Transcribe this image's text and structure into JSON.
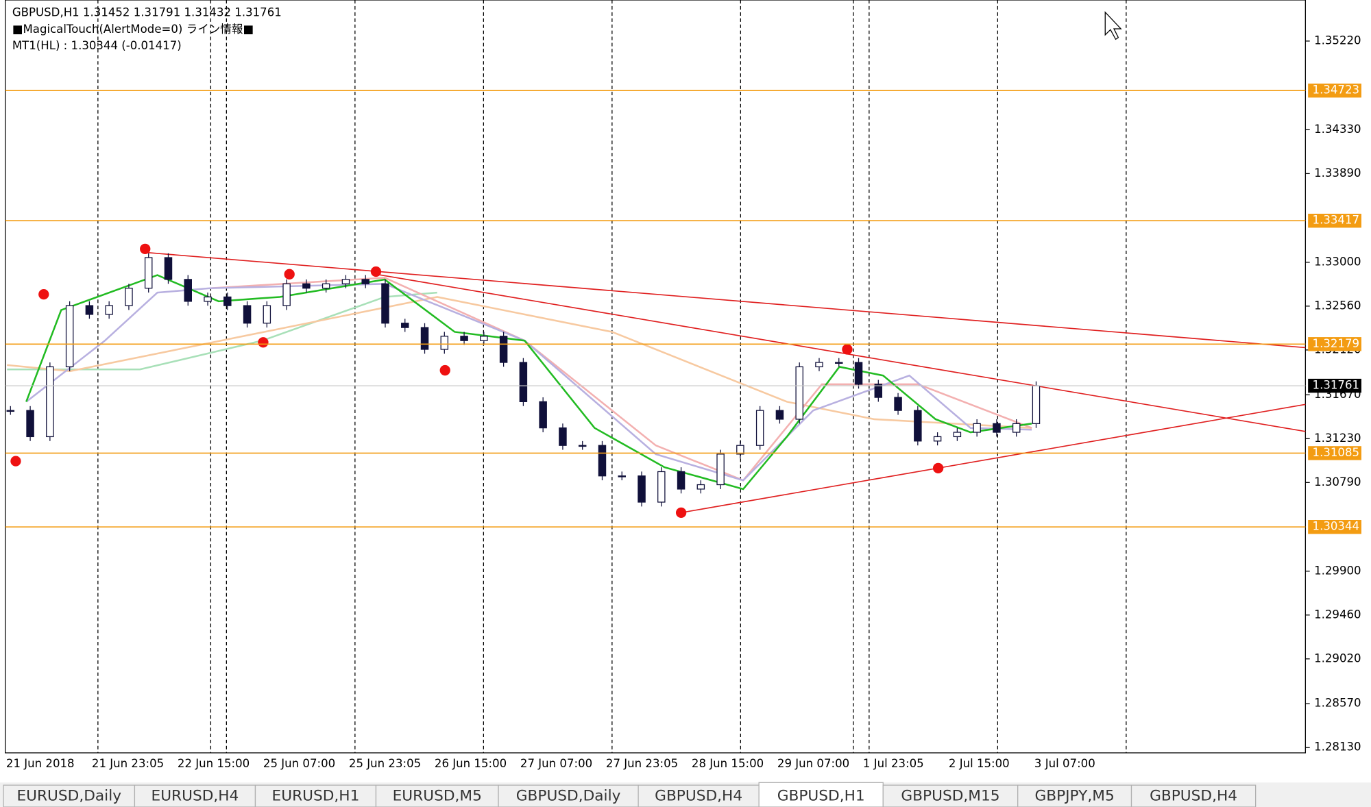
{
  "header": {
    "symbol_line": "GBPUSD,H1  1.31452 1.31791 1.31432 1.31761",
    "indicator_line": "■MagicalTouch(AlertMode=0) ライン情報■",
    "mt1_line": "MT1(HL) : 1.30344 (-0.01417)"
  },
  "chart_data": {
    "type": "candlestick",
    "ylim": [
      1.28077,
      1.35632
    ],
    "yticks": [
      {
        "value": 1.3522,
        "label": "1.35220"
      },
      {
        "value": 1.3433,
        "label": "1.34330"
      },
      {
        "value": 1.3389,
        "label": "1.33890"
      },
      {
        "value": 1.33,
        "label": "1.33000"
      },
      {
        "value": 1.3256,
        "label": "1.32560"
      },
      {
        "value": 1.3212,
        "label": "1.32120"
      },
      {
        "value": 1.3167,
        "label": "1.31670"
      },
      {
        "value": 1.3123,
        "label": "1.31230"
      },
      {
        "value": 1.3079,
        "label": "1.30790"
      },
      {
        "value": 1.299,
        "label": "1.29900"
      },
      {
        "value": 1.2946,
        "label": "1.29460"
      },
      {
        "value": 1.2902,
        "label": "1.29020"
      },
      {
        "value": 1.2857,
        "label": "1.28570"
      },
      {
        "value": 1.2813,
        "label": "1.28130"
      }
    ],
    "levels": [
      {
        "value": 1.34723,
        "label": "1.34723"
      },
      {
        "value": 1.33417,
        "label": "1.33417"
      },
      {
        "value": 1.32179,
        "label": "1.32179"
      },
      {
        "value": 1.31085,
        "label": "1.31085"
      },
      {
        "value": 1.30344,
        "label": "1.30344"
      }
    ],
    "current": {
      "value": 1.31761,
      "label": "1.31761"
    },
    "x_labels": [
      "21 Jun 2018",
      "21 Jun 23:05",
      "22 Jun 15:00",
      "25 Jun 07:00",
      "25 Jun 23:05",
      "26 Jun 15:00",
      "27 Jun 07:00",
      "27 Jun 23:05",
      "28 Jun 15:00",
      "29 Jun 07:00",
      "1 Jul 23:05",
      "2 Jul 15:00",
      "3 Jul 07:00"
    ],
    "closes": [
      1.31513,
      1.3125,
      1.31951,
      1.32565,
      1.32477,
      1.32565,
      1.3274,
      1.33047,
      1.32828,
      1.32608,
      1.32652,
      1.32565,
      1.32389,
      1.32565,
      1.32784,
      1.3274,
      1.32784,
      1.32828,
      1.32784,
      1.32389,
      1.32345,
      1.32126,
      1.32258,
      1.32214,
      1.32258,
      1.31995,
      1.31601,
      1.31338,
      1.31162,
      1.31162,
      1.30856,
      1.30856,
      1.30593,
      1.30899,
      1.30724,
      1.30768,
      1.31075,
      1.31162,
      1.31513,
      1.31425,
      1.31951,
      1.31995,
      1.31995,
      1.31776,
      1.31644,
      1.31513,
      1.31206,
      1.3125,
      1.31294,
      1.31381,
      1.31294,
      1.31381,
      1.31761
    ]
  },
  "tabs": [
    "EURUSD,Daily",
    "EURUSD,H4",
    "EURUSD,H1",
    "EURUSD,M5",
    "GBPUSD,Daily",
    "GBPUSD,H4",
    "GBPUSD,H1",
    "GBPUSD,M15",
    "GBPJPY,M5",
    "GBPUSD,H4"
  ],
  "active_tab": 6
}
